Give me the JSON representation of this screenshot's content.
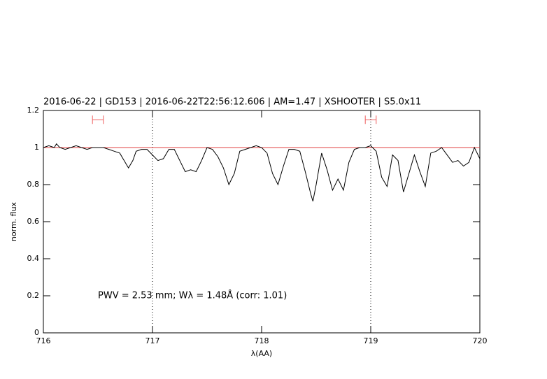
{
  "chart_data": {
    "type": "line",
    "title": "2016-06-22 | GD153 | 2016-06-22T22:56:12.606 | AM=1.47 | XSHOOTER | S5.0x11",
    "xlabel": "λ(AA)",
    "ylabel": "norm. flux",
    "annotation": "PWV = 2.53 mm; Wλ = 1.48Å (corr: 1.01)",
    "x": [
      716.0,
      716.05,
      716.1,
      716.12,
      716.15,
      716.2,
      716.25,
      716.3,
      716.35,
      716.4,
      716.45,
      716.5,
      716.55,
      716.6,
      716.65,
      716.7,
      716.75,
      716.78,
      716.82,
      716.85,
      716.9,
      716.95,
      717.0,
      717.05,
      717.1,
      717.15,
      717.2,
      717.25,
      717.3,
      717.35,
      717.4,
      717.45,
      717.5,
      717.55,
      717.6,
      717.65,
      717.7,
      717.75,
      717.8,
      717.85,
      717.9,
      717.95,
      718.0,
      718.05,
      718.1,
      718.15,
      718.2,
      718.25,
      718.3,
      718.35,
      718.4,
      718.45,
      718.47,
      718.5,
      718.55,
      718.6,
      718.65,
      718.7,
      718.75,
      718.8,
      718.85,
      718.9,
      718.95,
      719.0,
      719.05,
      719.1,
      719.15,
      719.2,
      719.25,
      719.3,
      719.35,
      719.4,
      719.45,
      719.5,
      719.55,
      719.6,
      719.65,
      719.7,
      719.75,
      719.8,
      719.85,
      719.9,
      719.95,
      720.0
    ],
    "values": [
      1.0,
      1.01,
      1.0,
      1.02,
      1.0,
      0.99,
      1.0,
      1.01,
      1.0,
      0.99,
      1.0,
      1.0,
      1.0,
      0.99,
      0.98,
      0.97,
      0.92,
      0.89,
      0.93,
      0.98,
      0.99,
      0.99,
      0.96,
      0.93,
      0.94,
      0.99,
      0.99,
      0.93,
      0.87,
      0.88,
      0.87,
      0.93,
      1.0,
      0.99,
      0.95,
      0.89,
      0.8,
      0.86,
      0.98,
      0.99,
      1.0,
      1.01,
      1.0,
      0.97,
      0.86,
      0.8,
      0.9,
      0.99,
      0.99,
      0.98,
      0.87,
      0.75,
      0.71,
      0.8,
      0.97,
      0.88,
      0.77,
      0.83,
      0.77,
      0.92,
      0.99,
      1.0,
      1.0,
      1.01,
      0.98,
      0.84,
      0.79,
      0.96,
      0.93,
      0.76,
      0.86,
      0.96,
      0.87,
      0.79,
      0.97,
      0.98,
      1.0,
      0.96,
      0.92,
      0.93,
      0.9,
      0.92,
      1.0,
      0.94
    ],
    "color": "#000000",
    "xlim": [
      716,
      720
    ],
    "xticks": [
      716,
      717,
      718,
      719,
      720
    ],
    "ylim": [
      0,
      1.2
    ],
    "yticks": [
      0,
      0.2,
      0.4,
      0.6,
      0.8,
      1,
      1.2
    ],
    "hline": 1,
    "hline_color": "#e04040",
    "vlines": [
      717,
      719
    ],
    "windows": [
      [
        716.45,
        716.55
      ],
      [
        718.95,
        719.05
      ]
    ],
    "window_y": 1.15,
    "window_color": "#f06060",
    "text_color": "#0000ff"
  }
}
